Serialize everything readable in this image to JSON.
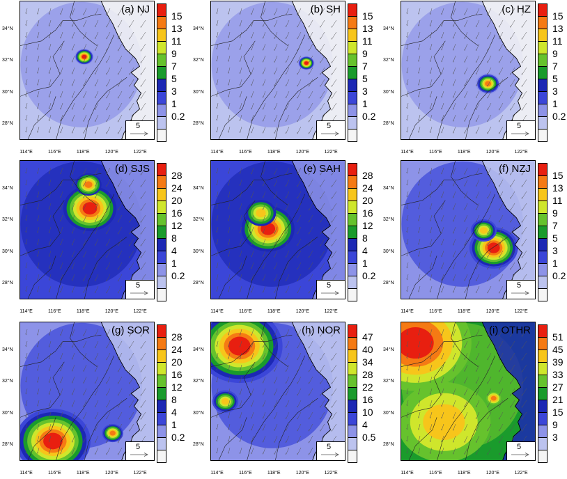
{
  "x_tick_labels": [
    "114°E",
    "116°E",
    "118°E",
    "120°E",
    "122°E"
  ],
  "y_tick_labels": [
    "34°N",
    "32°N",
    "30°N",
    "28°N"
  ],
  "reference_vector_label": "5",
  "palette_11": [
    "#f5f5f5",
    "#bcc3ef",
    "#8d93e8",
    "#3b46d8",
    "#1c28b4",
    "#1a9b2c",
    "#66c22d",
    "#cfe62c",
    "#f7c51b",
    "#f57a14",
    "#e81f10"
  ],
  "panels": [
    {
      "title": "(a) NJ",
      "levels": [
        "15",
        "13",
        "11",
        "9",
        "7",
        "5",
        "3",
        "1",
        "0.2"
      ],
      "hotspots": [
        {
          "lon": 118.0,
          "lat": 32.3,
          "intensity": 1.0,
          "spread": 0.35
        }
      ],
      "background_level": 1
    },
    {
      "title": "(b) SH",
      "levels": [
        "15",
        "13",
        "11",
        "9",
        "7",
        "5",
        "3",
        "1",
        "0.2"
      ],
      "hotspots": [
        {
          "lon": 120.2,
          "lat": 31.9,
          "intensity": 1.0,
          "spread": 0.3
        }
      ],
      "background_level": 1
    },
    {
      "title": "(c) HZ",
      "levels": [
        "15",
        "13",
        "11",
        "9",
        "7",
        "5",
        "3",
        "1",
        "0.2"
      ],
      "hotspots": [
        {
          "lon": 119.6,
          "lat": 30.6,
          "intensity": 0.9,
          "spread": 0.45
        }
      ],
      "background_level": 1
    },
    {
      "title": "(d) SJS",
      "levels": [
        "28",
        "24",
        "20",
        "16",
        "12",
        "8",
        "4",
        "1",
        "0.2"
      ],
      "hotspots": [
        {
          "lon": 118.4,
          "lat": 32.8,
          "intensity": 1.0,
          "spread": 1.0
        },
        {
          "lon": 118.3,
          "lat": 34.3,
          "intensity": 0.8,
          "spread": 0.5
        }
      ],
      "background_level": 3
    },
    {
      "title": "(e) SAH",
      "levels": [
        "28",
        "24",
        "20",
        "16",
        "12",
        "8",
        "4",
        "1",
        "0.2"
      ],
      "hotspots": [
        {
          "lon": 117.5,
          "lat": 31.5,
          "intensity": 1.0,
          "spread": 1.0
        },
        {
          "lon": 117.0,
          "lat": 32.5,
          "intensity": 0.7,
          "spread": 0.6
        }
      ],
      "background_level": 3
    },
    {
      "title": "(f) NZJ",
      "levels": [
        "15",
        "13",
        "11",
        "9",
        "7",
        "5",
        "3",
        "1",
        "0.2"
      ],
      "hotspots": [
        {
          "lon": 120.0,
          "lat": 30.3,
          "intensity": 1.0,
          "spread": 0.9
        },
        {
          "lon": 119.3,
          "lat": 31.4,
          "intensity": 0.7,
          "spread": 0.5
        }
      ],
      "background_level": 2
    },
    {
      "title": "(g) SOR",
      "levels": [
        "28",
        "24",
        "20",
        "16",
        "12",
        "8",
        "4",
        "1",
        "0.2"
      ],
      "hotspots": [
        {
          "lon": 115.8,
          "lat": 28.3,
          "intensity": 1.0,
          "spread": 1.4
        },
        {
          "lon": 120.0,
          "lat": 28.8,
          "intensity": 0.8,
          "spread": 0.4
        }
      ],
      "background_level": 2
    },
    {
      "title": "(h) NOR",
      "levels": [
        "47",
        "40",
        "34",
        "28",
        "22",
        "16",
        "10",
        "4",
        "0.5"
      ],
      "hotspots": [
        {
          "lon": 115.5,
          "lat": 34.3,
          "intensity": 1.0,
          "spread": 1.6
        },
        {
          "lon": 114.5,
          "lat": 30.8,
          "intensity": 0.6,
          "spread": 0.5
        }
      ],
      "background_level": 2
    },
    {
      "title": "(i) OTHR",
      "levels": [
        "51",
        "45",
        "39",
        "33",
        "27",
        "21",
        "15",
        "9",
        "3"
      ],
      "hotspots": [
        {
          "lon": 114.5,
          "lat": 34.5,
          "intensity": 1.0,
          "spread": 2.2
        },
        {
          "lon": 116.5,
          "lat": 29.5,
          "intensity": 0.6,
          "spread": 2.0
        },
        {
          "lon": 120.0,
          "lat": 31.0,
          "intensity": 0.9,
          "spread": 0.3
        }
      ],
      "background_level": 5
    }
  ]
}
